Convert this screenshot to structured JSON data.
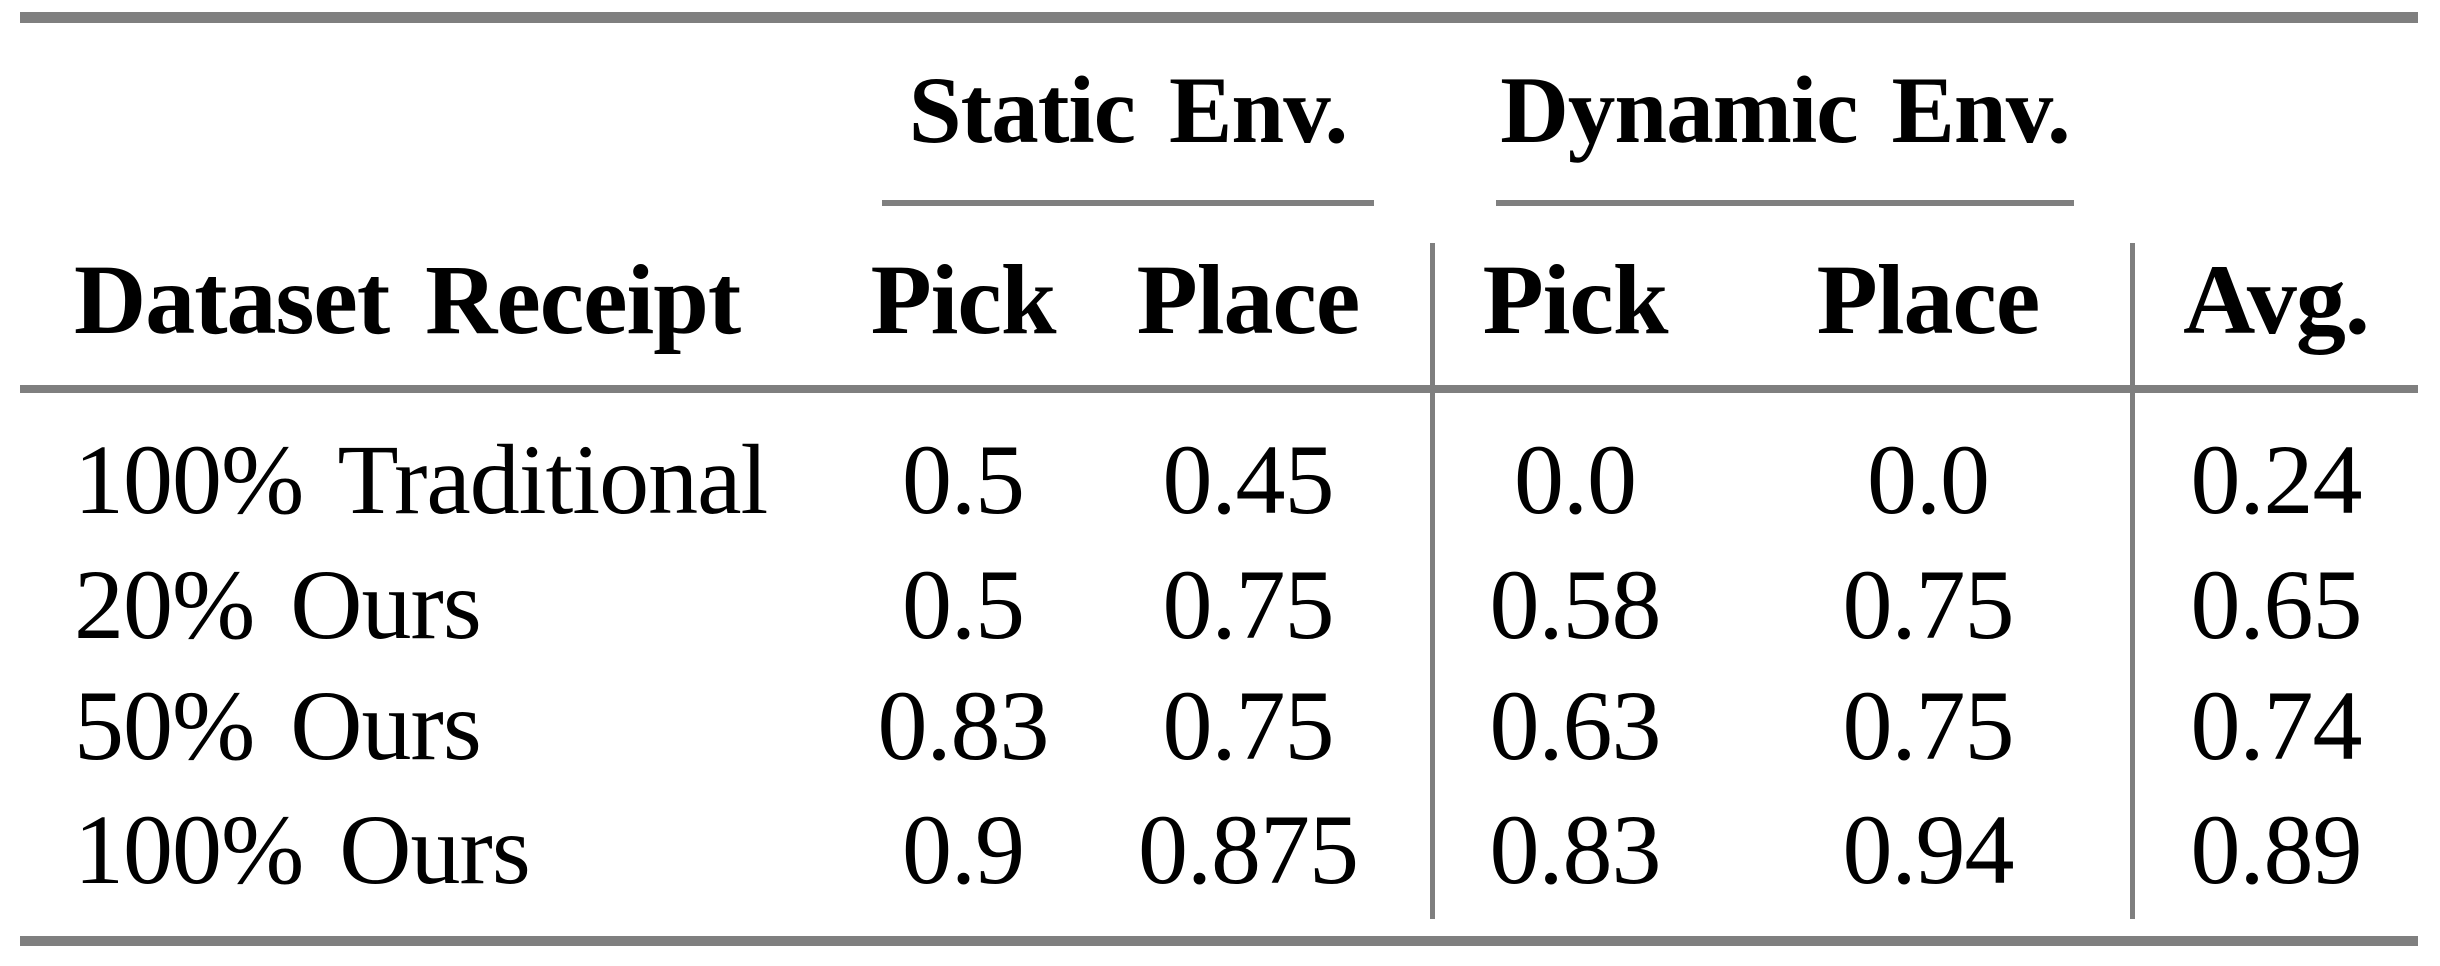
{
  "table": {
    "rule_color": "#7f7f7f",
    "text_color": "#000000",
    "col_groups": [
      {
        "label": "Static Env."
      },
      {
        "label": "Dynamic Env."
      }
    ],
    "headers": {
      "row_label": "Dataset Receipt",
      "static_pick": "Pick",
      "static_place": "Place",
      "dynamic_pick": "Pick",
      "dynamic_place": "Place",
      "avg": "Avg."
    },
    "rows": [
      {
        "label": "100% Traditional",
        "static_pick": "0.5",
        "static_place": "0.45",
        "dynamic_pick": "0.0",
        "dynamic_place": "0.0",
        "avg": "0.24"
      },
      {
        "label": "20% Ours",
        "static_pick": "0.5",
        "static_place": "0.75",
        "dynamic_pick": "0.58",
        "dynamic_place": "0.75",
        "avg": "0.65"
      },
      {
        "label": "50% Ours",
        "static_pick": "0.83",
        "static_place": "0.75",
        "dynamic_pick": "0.63",
        "dynamic_place": "0.75",
        "avg": "0.74"
      },
      {
        "label": "100% Ours",
        "static_pick": "0.9",
        "static_place": "0.875",
        "dynamic_pick": "0.83",
        "dynamic_place": "0.94",
        "avg": "0.89"
      }
    ]
  }
}
